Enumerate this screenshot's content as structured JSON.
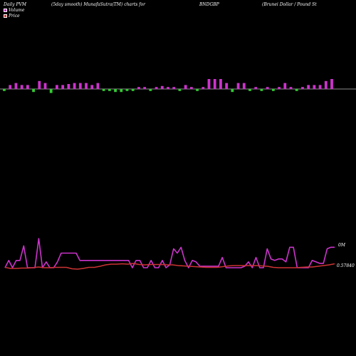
{
  "header": {
    "title_left": "Daily PVM",
    "subtitle": "(5day smooth) MunafaSutra(TM) charts for",
    "symbol": "BNDGBP",
    "pair": "(Brunei  Dollar / Pound St"
  },
  "legend": {
    "volume_label": "Volume",
    "price_label": "Price",
    "volume_color": "#cc33cc",
    "price_color": "#cc3333"
  },
  "chart_data": [
    {
      "type": "bar",
      "title": "Volume",
      "positive_color": "#cc33cc",
      "negative_color": "#33cc33",
      "values": [
        -2,
        4,
        6,
        4,
        4,
        -3,
        8,
        6,
        -4,
        4,
        4,
        5,
        6,
        6,
        6,
        4,
        6,
        -2,
        -2,
        -3,
        -3,
        -2,
        -2,
        2,
        2,
        -2,
        2,
        3,
        2,
        2,
        -2,
        4,
        2,
        -2,
        2,
        10,
        10,
        10,
        6,
        -3,
        6,
        6,
        -2,
        2,
        -2,
        2,
        -2,
        2,
        6,
        2,
        -2,
        2,
        4,
        4,
        4,
        8,
        10
      ]
    },
    {
      "type": "line",
      "title": "Price",
      "right_labels": [
        "0M",
        "0.57840"
      ],
      "series": [
        {
          "color": "#cc33cc",
          "values": [
            0,
            5,
            0,
            5,
            5,
            15,
            0,
            0,
            0,
            20,
            0,
            4,
            0,
            0,
            4,
            10,
            10,
            10,
            10,
            10,
            5,
            5,
            5,
            5,
            5,
            5,
            5,
            5,
            5,
            5,
            5,
            5,
            5,
            5,
            0,
            5,
            5,
            0,
            0,
            5,
            0,
            0,
            5,
            0,
            2,
            13,
            10,
            14,
            5,
            0,
            5,
            4,
            1,
            1,
            1,
            1,
            1,
            1,
            7,
            0,
            0,
            0,
            0,
            0,
            1,
            4,
            0,
            7,
            0,
            0,
            13,
            6,
            5,
            6,
            6,
            4,
            14,
            14,
            0,
            0,
            0,
            0,
            5,
            4,
            3,
            3,
            13,
            14,
            14
          ]
        },
        {
          "color": "#cc3333",
          "values": [
            0.5,
            0.2,
            0.2,
            0.3,
            0.3,
            0.4,
            0.6,
            0.4,
            0.4,
            0.5,
            0.5,
            0.5,
            0.1,
            0.0,
            0.2,
            0.5,
            0.5,
            0.8,
            1.2,
            1.4,
            1.4,
            1.5,
            1.4,
            1.6,
            1.3,
            1.2,
            1.3,
            1.3,
            1.3,
            1.2,
            1.2,
            1.0,
            0.9,
            0.8,
            0.7,
            0.6,
            0.5,
            0.5,
            0.5,
            0.7,
            0.9,
            1.0,
            1.0,
            1.0,
            1.0,
            1.0,
            0.9,
            0.8,
            0.5,
            0.4,
            0.4,
            0.4,
            0.4,
            0.5,
            0.6,
            0.6,
            0.8,
            1.0,
            1.2,
            1.5
          ]
        }
      ]
    }
  ]
}
